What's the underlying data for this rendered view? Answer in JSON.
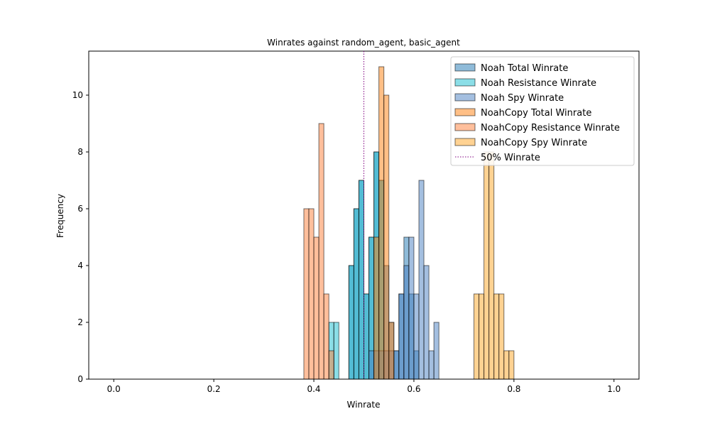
{
  "chart_data": {
    "type": "bar",
    "title": "Winrates against random_agent, basic_agent",
    "xlabel": "Winrate",
    "ylabel": "Frequency",
    "xlim": [
      -0.05,
      1.05
    ],
    "ylim": [
      0,
      11.55
    ],
    "xticks": [
      "0.0",
      "0.2",
      "0.4",
      "0.6",
      "0.8",
      "1.0"
    ],
    "yticks": [
      "0",
      "2",
      "4",
      "6",
      "8",
      "10"
    ],
    "grid": false,
    "legend_position": "top-right",
    "bin_width": 0.01,
    "series": [
      {
        "name": "Noah Total Winrate",
        "color": "#1f77b4",
        "bins": [
          [
            0.47,
            4
          ],
          [
            0.48,
            6
          ],
          [
            0.49,
            7
          ],
          [
            0.5,
            3
          ],
          [
            0.51,
            5
          ],
          [
            0.52,
            8
          ],
          [
            0.53,
            7
          ],
          [
            0.54,
            4
          ],
          [
            0.55,
            2
          ],
          [
            0.56,
            1
          ],
          [
            0.57,
            3
          ],
          [
            0.58,
            5
          ],
          [
            0.59,
            3
          ],
          [
            0.6,
            1
          ]
        ]
      },
      {
        "name": "Noah Resistance Winrate",
        "color": "#17becf",
        "bins": [
          [
            0.43,
            2
          ],
          [
            0.44,
            2
          ],
          [
            0.47,
            4
          ],
          [
            0.48,
            6
          ],
          [
            0.49,
            7
          ],
          [
            0.5,
            3
          ],
          [
            0.51,
            5
          ],
          [
            0.52,
            8
          ],
          [
            0.53,
            7
          ]
        ]
      },
      {
        "name": "Noah Spy Winrate",
        "color": "#4a7fc1",
        "bins": [
          [
            0.51,
            1
          ],
          [
            0.52,
            1
          ],
          [
            0.53,
            1
          ],
          [
            0.54,
            1
          ],
          [
            0.55,
            1
          ],
          [
            0.56,
            1
          ],
          [
            0.57,
            3
          ],
          [
            0.58,
            4
          ],
          [
            0.59,
            5
          ],
          [
            0.6,
            3
          ],
          [
            0.61,
            7
          ],
          [
            0.62,
            4
          ],
          [
            0.63,
            1
          ],
          [
            0.64,
            2
          ]
        ]
      },
      {
        "name": "NoahCopy Total Winrate",
        "color": "#ff7f0e",
        "bins": [
          [
            0.52,
            5
          ],
          [
            0.53,
            11
          ],
          [
            0.54,
            10
          ],
          [
            0.55,
            2
          ]
        ]
      },
      {
        "name": "NoahCopy Resistance Winrate",
        "color": "#ff7f3a",
        "bins": [
          [
            0.38,
            6
          ],
          [
            0.39,
            6
          ],
          [
            0.4,
            5
          ],
          [
            0.41,
            9
          ],
          [
            0.42,
            3
          ],
          [
            0.43,
            1
          ]
        ]
      },
      {
        "name": "NoahCopy Spy Winrate",
        "color": "#ffa526",
        "bins": [
          [
            0.72,
            3
          ],
          [
            0.73,
            3
          ],
          [
            0.74,
            8
          ],
          [
            0.75,
            8
          ],
          [
            0.76,
            3
          ],
          [
            0.77,
            3
          ],
          [
            0.78,
            1
          ],
          [
            0.79,
            1
          ]
        ]
      }
    ],
    "reference_line": {
      "name": "50% Winrate",
      "x": 0.5,
      "color": "#800080"
    }
  }
}
